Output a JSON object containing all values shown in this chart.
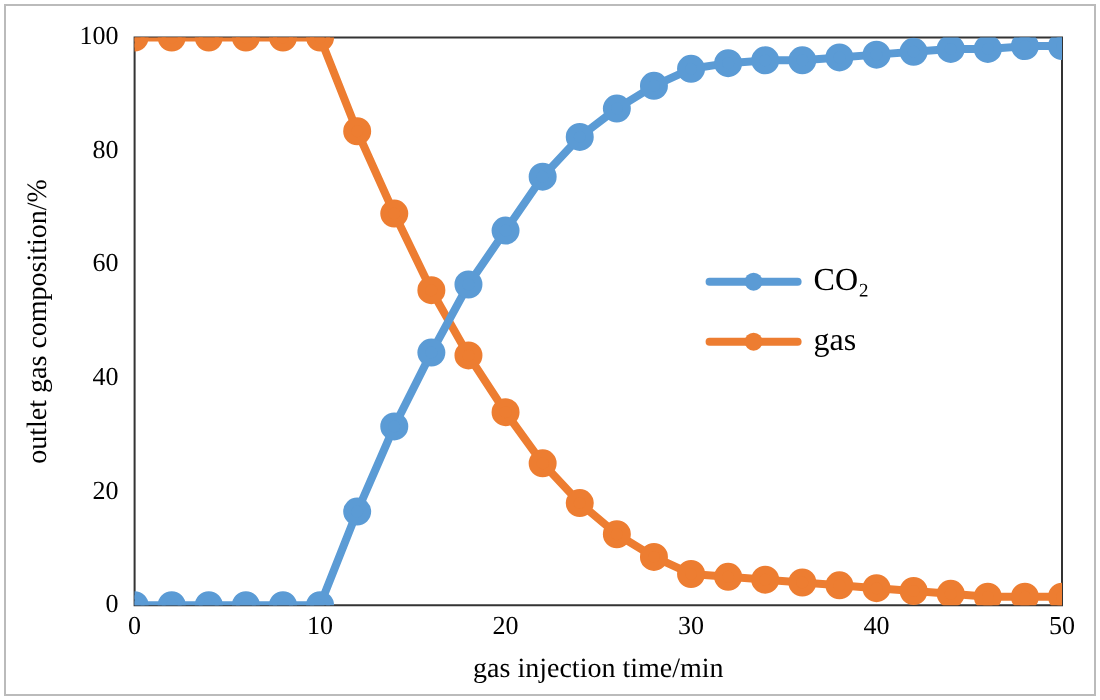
{
  "chart_data": {
    "type": "line",
    "xlabel": "gas injection time/min",
    "ylabel": "outlet gas composition/%",
    "x": [
      0,
      2,
      4,
      6,
      8,
      10,
      12,
      14,
      16,
      18,
      20,
      22,
      24,
      26,
      28,
      30,
      32,
      34,
      36,
      38,
      40,
      42,
      44,
      46,
      48,
      50
    ],
    "series": [
      {
        "name": "CO₂",
        "color": "#5b9bd5",
        "values": [
          0,
          0,
          0,
          0,
          0,
          0,
          16.5,
          31.5,
          44.5,
          56.5,
          66,
          75.5,
          82.5,
          87.5,
          91.5,
          94.5,
          95.5,
          96,
          96,
          96.5,
          97,
          97.5,
          98,
          98,
          98.5,
          98.5
        ]
      },
      {
        "name": "gas",
        "color": "#ed7d31",
        "values": [
          100,
          100,
          100,
          100,
          100,
          100,
          83.5,
          69,
          55.5,
          44,
          34,
          25,
          18,
          12.5,
          8.5,
          5.5,
          5,
          4.5,
          4,
          3.5,
          3,
          2.5,
          2,
          1.5,
          1.5,
          1.5
        ]
      }
    ],
    "xlim": [
      0,
      50
    ],
    "xticks": [
      0,
      10,
      20,
      30,
      40,
      50
    ],
    "ylim": [
      0,
      100
    ],
    "yticks": [
      0,
      20,
      40,
      60,
      80,
      100
    ],
    "grid": false,
    "legend": "right",
    "marker": "circle",
    "line_style": "solid"
  }
}
